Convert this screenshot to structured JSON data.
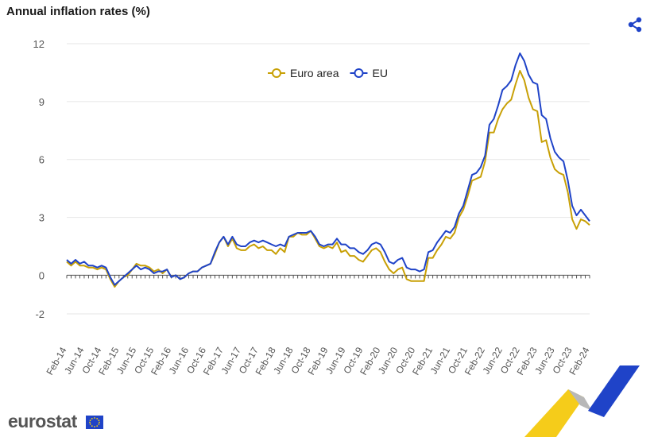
{
  "header": {
    "title": "Annual inflation rates (%)",
    "share_icon": "share-icon"
  },
  "footer": {
    "logo_text": "eurostat"
  },
  "colors": {
    "euro_area": "#c8a006",
    "eu": "#1f43c8",
    "grid": "#e6e6e6",
    "axis_text": "#555555"
  },
  "chart_data": {
    "type": "line",
    "title": "Annual inflation rates (%)",
    "xlabel": "",
    "ylabel": "",
    "ylim": [
      -2,
      12
    ],
    "yticks": [
      -2,
      0,
      3,
      6,
      9,
      12
    ],
    "xtick_labels": [
      "Feb-14",
      "Jun-14",
      "Oct-14",
      "Feb-15",
      "Jun-15",
      "Oct-15",
      "Feb-16",
      "Jun-16",
      "Oct-16",
      "Feb-17",
      "Jun-17",
      "Oct-17",
      "Feb-18",
      "Jun-18",
      "Oct-18",
      "Feb-19",
      "Jun-19",
      "Oct-19",
      "Feb-20",
      "Jun-20",
      "Oct-20",
      "Feb-21",
      "Jun-21",
      "Oct-21",
      "Feb-22",
      "Jun-22",
      "Oct-22",
      "Feb-23",
      "Jun-23",
      "Oct-23",
      "Feb-24"
    ],
    "legend": {
      "placement": "top-center"
    },
    "grid": true,
    "x": [
      "Feb-14",
      "Mar-14",
      "Apr-14",
      "May-14",
      "Jun-14",
      "Jul-14",
      "Aug-14",
      "Sep-14",
      "Oct-14",
      "Nov-14",
      "Dec-14",
      "Jan-15",
      "Feb-15",
      "Mar-15",
      "Apr-15",
      "May-15",
      "Jun-15",
      "Jul-15",
      "Aug-15",
      "Sep-15",
      "Oct-15",
      "Nov-15",
      "Dec-15",
      "Jan-16",
      "Feb-16",
      "Mar-16",
      "Apr-16",
      "May-16",
      "Jun-16",
      "Jul-16",
      "Aug-16",
      "Sep-16",
      "Oct-16",
      "Nov-16",
      "Dec-16",
      "Jan-17",
      "Feb-17",
      "Mar-17",
      "Apr-17",
      "May-17",
      "Jun-17",
      "Jul-17",
      "Aug-17",
      "Sep-17",
      "Oct-17",
      "Nov-17",
      "Dec-17",
      "Jan-18",
      "Feb-18",
      "Mar-18",
      "Apr-18",
      "May-18",
      "Jun-18",
      "Jul-18",
      "Aug-18",
      "Sep-18",
      "Oct-18",
      "Nov-18",
      "Dec-18",
      "Jan-19",
      "Feb-19",
      "Mar-19",
      "Apr-19",
      "May-19",
      "Jun-19",
      "Jul-19",
      "Aug-19",
      "Sep-19",
      "Oct-19",
      "Nov-19",
      "Dec-19",
      "Jan-20",
      "Feb-20",
      "Mar-20",
      "Apr-20",
      "May-20",
      "Jun-20",
      "Jul-20",
      "Aug-20",
      "Sep-20",
      "Oct-20",
      "Nov-20",
      "Dec-20",
      "Jan-21",
      "Feb-21",
      "Mar-21",
      "Apr-21",
      "May-21",
      "Jun-21",
      "Jul-21",
      "Aug-21",
      "Sep-21",
      "Oct-21",
      "Nov-21",
      "Dec-21",
      "Jan-22",
      "Feb-22",
      "Mar-22",
      "Apr-22",
      "May-22",
      "Jun-22",
      "Jul-22",
      "Aug-22",
      "Sep-22",
      "Oct-22",
      "Nov-22",
      "Dec-22",
      "Jan-23",
      "Feb-23",
      "Mar-23",
      "Apr-23",
      "May-23",
      "Jun-23",
      "Jul-23",
      "Aug-23",
      "Sep-23",
      "Oct-23",
      "Nov-23",
      "Dec-23",
      "Jan-24",
      "Feb-24"
    ],
    "series": [
      {
        "name": "Euro area",
        "color": "#c8a006",
        "values": [
          0.7,
          0.5,
          0.7,
          0.5,
          0.5,
          0.4,
          0.4,
          0.3,
          0.4,
          0.3,
          -0.2,
          -0.6,
          -0.3,
          -0.1,
          0.0,
          0.3,
          0.6,
          0.5,
          0.5,
          0.4,
          0.2,
          0.3,
          0.1,
          0.3,
          -0.1,
          0.0,
          -0.2,
          -0.1,
          0.1,
          0.2,
          0.2,
          0.4,
          0.5,
          0.6,
          1.1,
          1.7,
          2.0,
          1.5,
          1.9,
          1.4,
          1.3,
          1.3,
          1.5,
          1.6,
          1.4,
          1.5,
          1.3,
          1.3,
          1.1,
          1.4,
          1.2,
          2.0,
          2.0,
          2.2,
          2.1,
          2.1,
          2.3,
          1.9,
          1.5,
          1.4,
          1.5,
          1.4,
          1.7,
          1.2,
          1.3,
          1.0,
          1.0,
          0.8,
          0.7,
          1.0,
          1.3,
          1.4,
          1.2,
          0.7,
          0.3,
          0.1,
          0.3,
          0.4,
          -0.2,
          -0.3,
          -0.3,
          -0.3,
          -0.3,
          0.9,
          0.9,
          1.3,
          1.6,
          2.0,
          1.9,
          2.2,
          3.0,
          3.4,
          4.1,
          4.9,
          5.0,
          5.1,
          5.9,
          7.4,
          7.4,
          8.1,
          8.6,
          8.9,
          9.1,
          9.9,
          10.6,
          10.1,
          9.2,
          8.6,
          8.5,
          6.9,
          7.0,
          6.1,
          5.5,
          5.3,
          5.2,
          4.3,
          2.9,
          2.4,
          2.9,
          2.8,
          2.6
        ]
      },
      {
        "name": "EU",
        "color": "#1f43c8",
        "values": [
          0.8,
          0.6,
          0.8,
          0.6,
          0.7,
          0.5,
          0.5,
          0.4,
          0.5,
          0.4,
          -0.1,
          -0.5,
          -0.3,
          -0.1,
          0.1,
          0.3,
          0.5,
          0.3,
          0.4,
          0.3,
          0.1,
          0.2,
          0.2,
          0.3,
          -0.1,
          0.0,
          -0.2,
          -0.1,
          0.1,
          0.2,
          0.2,
          0.4,
          0.5,
          0.6,
          1.2,
          1.7,
          2.0,
          1.6,
          2.0,
          1.6,
          1.5,
          1.5,
          1.7,
          1.8,
          1.7,
          1.8,
          1.7,
          1.6,
          1.5,
          1.6,
          1.5,
          2.0,
          2.1,
          2.2,
          2.2,
          2.2,
          2.3,
          2.0,
          1.6,
          1.5,
          1.6,
          1.6,
          1.9,
          1.6,
          1.6,
          1.4,
          1.4,
          1.2,
          1.1,
          1.3,
          1.6,
          1.7,
          1.6,
          1.2,
          0.7,
          0.6,
          0.8,
          0.9,
          0.4,
          0.3,
          0.3,
          0.2,
          0.3,
          1.2,
          1.3,
          1.7,
          2.0,
          2.3,
          2.2,
          2.5,
          3.2,
          3.6,
          4.4,
          5.2,
          5.3,
          5.6,
          6.2,
          7.8,
          8.1,
          8.8,
          9.6,
          9.8,
          10.1,
          10.9,
          11.5,
          11.1,
          10.4,
          10.0,
          9.9,
          8.3,
          8.1,
          7.1,
          6.4,
          6.1,
          5.9,
          4.9,
          3.6,
          3.1,
          3.4,
          3.1,
          2.8
        ]
      }
    ]
  }
}
